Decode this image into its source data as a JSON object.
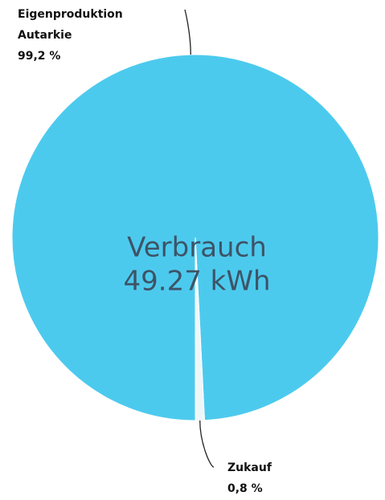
{
  "chart_data": {
    "type": "pie",
    "categories": [
      "Eigenproduktion Autarkie",
      "Zukauf"
    ],
    "values": [
      99.2,
      0.8
    ],
    "value_labels": [
      "99,2 %",
      "0,8 %"
    ],
    "colors": [
      "#4ccaee",
      "#eef6f8"
    ],
    "center_title": "Verbrauch",
    "center_value": "49.27 kWh"
  }
}
